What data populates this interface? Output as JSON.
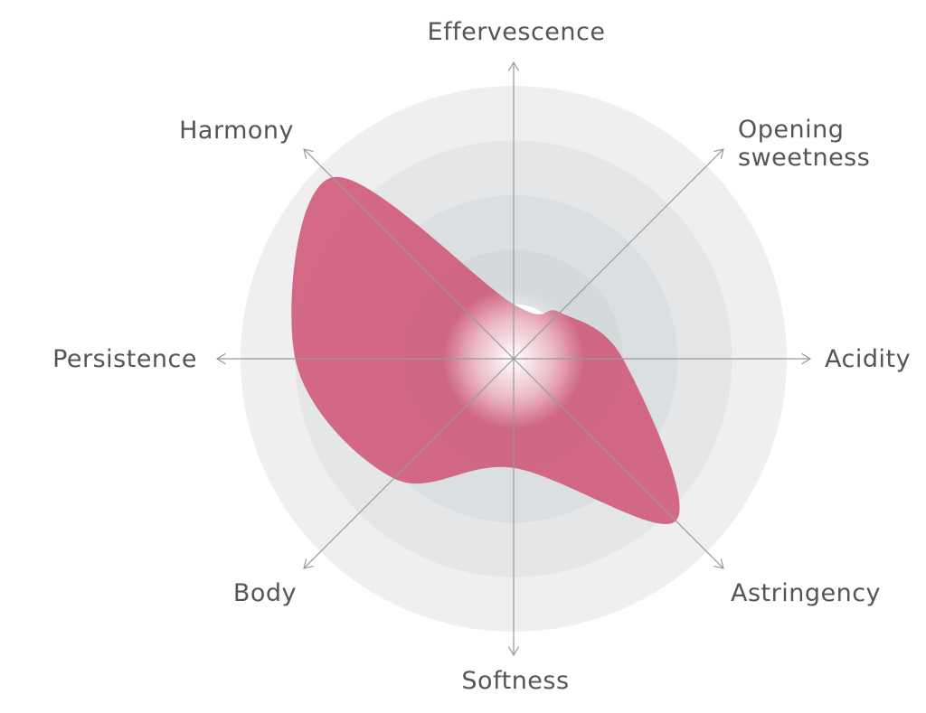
{
  "chart_data": {
    "type": "radar",
    "title": "",
    "axes": [
      {
        "key": "effervescence",
        "label_lines": [
          "Effervescence"
        ]
      },
      {
        "key": "opening_sweetness",
        "label_lines": [
          "Opening",
          "sweetness"
        ]
      },
      {
        "key": "acidity",
        "label_lines": [
          "Acidity"
        ]
      },
      {
        "key": "astringency",
        "label_lines": [
          "Astringency"
        ]
      },
      {
        "key": "softness",
        "label_lines": [
          "Softness"
        ]
      },
      {
        "key": "body",
        "label_lines": [
          "Body"
        ]
      },
      {
        "key": "persistence",
        "label_lines": [
          "Persistence"
        ]
      },
      {
        "key": "harmony",
        "label_lines": [
          "Harmony"
        ]
      }
    ],
    "scale": {
      "min": 0,
      "max": 5,
      "rings": 5
    },
    "series": [
      {
        "values": [
          1.0,
          1.2,
          2.0,
          4.2,
          2.0,
          3.1,
          4.0,
          4.7
        ],
        "color": "#cf5a78"
      }
    ],
    "ring_colors": [
      "#efefef",
      "#e5e6e7",
      "#dcdfe1",
      "#d4d9dc",
      "#ffffff"
    ],
    "axis_color": "#9a9a9a",
    "grid": true,
    "legend": false
  }
}
